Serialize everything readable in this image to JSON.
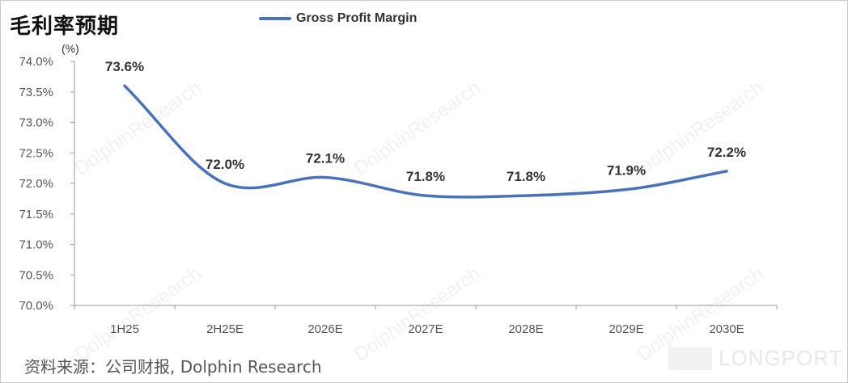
{
  "header": {
    "title": "毛利率预期",
    "unit": "(%)"
  },
  "footer": {
    "source": "资料来源：公司财报, Dolphin Research",
    "brand": "LONGPORT"
  },
  "watermark": {
    "text": "DolphinResearch"
  },
  "chart_data": {
    "type": "line",
    "categories": [
      "1H25",
      "2H25E",
      "2026E",
      "2027E",
      "2028E",
      "2029E",
      "2030E"
    ],
    "series": [
      {
        "name": "Gross Profit Margin",
        "values": [
          73.6,
          72.0,
          72.1,
          71.8,
          71.8,
          71.9,
          72.2
        ],
        "labels": [
          "73.6%",
          "72.0%",
          "72.1%",
          "71.8%",
          "71.8%",
          "71.9%",
          "72.2%"
        ],
        "color": "#4a72b8"
      }
    ],
    "ylim": [
      70.0,
      74.0
    ],
    "yticks": [
      70.0,
      70.5,
      71.0,
      71.5,
      72.0,
      72.5,
      73.0,
      73.5,
      74.0
    ],
    "ytick_labels": [
      "70.0%",
      "70.5%",
      "71.0%",
      "71.5%",
      "72.0%",
      "72.5%",
      "73.0%",
      "73.5%",
      "74.0%"
    ],
    "grid": false,
    "legend": "top-center",
    "smooth": true
  }
}
